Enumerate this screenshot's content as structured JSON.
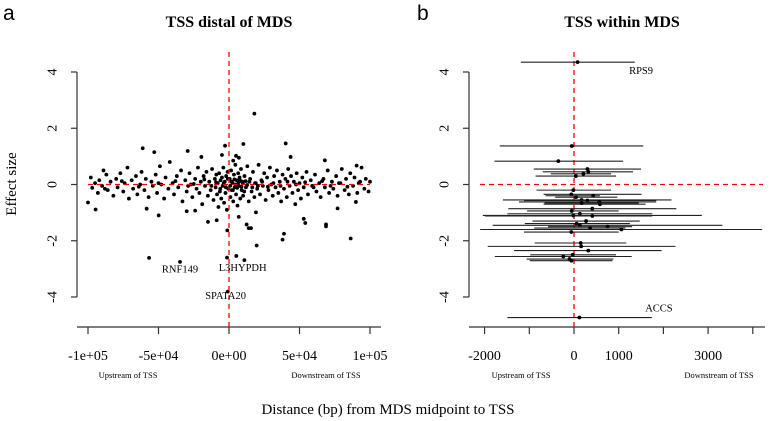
{
  "chart_data": [
    {
      "type": "scatter",
      "panel_letter": "a",
      "title": "TSS distal of MDS",
      "ylabel": "Effect size",
      "xlabel": "Distance (bp) from MDS midpoint to TSS",
      "xlim": [
        -100000,
        100000
      ],
      "ylim": [
        -4,
        4
      ],
      "xticks": [
        -100000,
        -50000,
        0,
        50000,
        100000
      ],
      "xtick_labels": [
        "-1e+05",
        "-5e+04",
        "0e+00",
        "5e+04",
        "1e+05"
      ],
      "yticks": [
        -4,
        -2,
        0,
        2,
        4
      ],
      "ytick_labels": [
        "-4",
        "-2",
        "0",
        "2",
        "4"
      ],
      "x_sublabels": {
        "left": "Upstream of TSS",
        "right": "Downstream of TSS"
      },
      "reference_lines": {
        "x": 0,
        "y": 0,
        "color": "#ff0000",
        "style": "dashed"
      },
      "point_color": "#000000",
      "annotations": [
        {
          "text": "RNF149",
          "x": -34750,
          "y": -3.04
        },
        {
          "text": "L3HYPDH",
          "x": 9700,
          "y": -2.99
        },
        {
          "text": "SPATA20",
          "x": -2400,
          "y": -3.99
        }
      ],
      "points": [
        [
          18000,
          2.52
        ],
        [
          40200,
          1.46
        ],
        [
          10200,
          1.44
        ],
        [
          -61200,
          1.29
        ],
        [
          -2800,
          1.38
        ],
        [
          -53000,
          1.15
        ],
        [
          -29300,
          1.19
        ],
        [
          -19600,
          0.98
        ],
        [
          43700,
          0.98
        ],
        [
          68000,
          0.86
        ],
        [
          90500,
          0.67
        ],
        [
          5000,
          1.02
        ],
        [
          7000,
          0.95
        ],
        [
          -5000,
          1.05
        ],
        [
          3000,
          0.85
        ],
        [
          -56700,
          -2.61
        ],
        [
          -34750,
          -2.75
        ],
        [
          -1400,
          -2.6
        ],
        [
          5200,
          -2.54
        ],
        [
          10900,
          -2.69
        ],
        [
          -900,
          -3.81
        ],
        [
          19600,
          -2.17
        ],
        [
          38000,
          -1.96
        ],
        [
          39000,
          -1.75
        ],
        [
          86300,
          -1.92
        ],
        [
          68800,
          -1.49
        ],
        [
          68800,
          -1.42
        ],
        [
          54100,
          -1.37
        ],
        [
          53000,
          -1.22
        ],
        [
          -49900,
          -1.1
        ],
        [
          -58400,
          -0.86
        ],
        [
          -94600,
          -0.89
        ],
        [
          -100000,
          -0.64
        ],
        [
          -1200,
          -1.63
        ],
        [
          -14900,
          -1.33
        ],
        [
          -8700,
          -1.27
        ],
        [
          12500,
          -1.42
        ],
        [
          15600,
          -1.55
        ],
        [
          19100,
          -0.99
        ],
        [
          6900,
          -1.15
        ],
        [
          14000,
          -1.55
        ],
        [
          -30000,
          -0.95
        ],
        [
          -24000,
          -0.93
        ],
        [
          77000,
          -0.85
        ],
        [
          90000,
          -0.62
        ],
        [
          -98000,
          0.25
        ],
        [
          -97000,
          -0.12
        ],
        [
          -95000,
          0.05
        ],
        [
          -93000,
          -0.3
        ],
        [
          -92000,
          0.15
        ],
        [
          -90000,
          -0.05
        ],
        [
          -89000,
          0.5
        ],
        [
          -87000,
          0.35
        ],
        [
          -86000,
          -0.2
        ],
        [
          -84000,
          0.1
        ],
        [
          -82000,
          -0.4
        ],
        [
          -80000,
          0.2
        ],
        [
          -79000,
          -0.1
        ],
        [
          -77000,
          0.4
        ],
        [
          -75000,
          -0.25
        ],
        [
          -74000,
          0.05
        ],
        [
          -72000,
          0.6
        ],
        [
          -71000,
          -0.5
        ],
        [
          -69000,
          0.15
        ],
        [
          -68000,
          -0.15
        ],
        [
          -66000,
          0.3
        ],
        [
          -65000,
          -0.35
        ],
        [
          -63000,
          0.0
        ],
        [
          -62000,
          0.45
        ],
        [
          -60000,
          -0.2
        ],
        [
          -59000,
          0.2
        ],
        [
          -57000,
          -0.45
        ],
        [
          -55000,
          0.1
        ],
        [
          -54000,
          -0.05
        ],
        [
          -52000,
          0.35
        ],
        [
          -51000,
          -0.3
        ],
        [
          -49000,
          0.65
        ],
        [
          -48000,
          0.0
        ],
        [
          -46000,
          -0.5
        ],
        [
          -45000,
          0.25
        ],
        [
          -43000,
          -0.15
        ],
        [
          -42000,
          0.8
        ],
        [
          -40000,
          0.05
        ],
        [
          -39000,
          -0.35
        ],
        [
          -37000,
          0.3
        ],
        [
          -36000,
          -0.1
        ],
        [
          -34000,
          0.5
        ],
        [
          -33000,
          -0.6
        ],
        [
          -31000,
          0.15
        ],
        [
          -30000,
          -0.25
        ],
        [
          -28000,
          0.4
        ],
        [
          -27000,
          0.0
        ],
        [
          -26000,
          -0.45
        ],
        [
          -24000,
          0.2
        ],
        [
          -23000,
          -0.15
        ],
        [
          -22000,
          0.6
        ],
        [
          -21000,
          -0.3
        ],
        [
          -20000,
          0.1
        ],
        [
          -19000,
          -0.7
        ],
        [
          -18000,
          0.3
        ],
        [
          -17000,
          -0.05
        ],
        [
          -16000,
          0.45
        ],
        [
          -15000,
          -0.4
        ],
        [
          -14000,
          0.1
        ],
        [
          -13000,
          -0.2
        ],
        [
          -12000,
          0.55
        ],
        [
          -11000,
          -0.55
        ],
        [
          -10000,
          0.2
        ],
        [
          -9500,
          -0.1
        ],
        [
          -9000,
          0.35
        ],
        [
          -8500,
          -0.35
        ],
        [
          -8000,
          0.05
        ],
        [
          -7500,
          -0.8
        ],
        [
          -7000,
          0.4
        ],
        [
          -6500,
          -0.25
        ],
        [
          -6000,
          0.15
        ],
        [
          -5500,
          -0.5
        ],
        [
          -5000,
          0.25
        ],
        [
          -4500,
          -0.05
        ],
        [
          -4000,
          0.6
        ],
        [
          -3500,
          -0.65
        ],
        [
          -3000,
          0.1
        ],
        [
          -2500,
          -0.3
        ],
        [
          -2000,
          0.3
        ],
        [
          -1500,
          -0.9
        ],
        [
          -1000,
          0.45
        ],
        [
          -500,
          -0.15
        ],
        [
          500,
          0.2
        ],
        [
          1000,
          -0.45
        ],
        [
          1500,
          0.5
        ],
        [
          2000,
          -0.2
        ],
        [
          2500,
          0.05
        ],
        [
          3000,
          -0.6
        ],
        [
          3500,
          0.35
        ],
        [
          4000,
          -0.1
        ],
        [
          4500,
          0.7
        ],
        [
          5000,
          -0.35
        ],
        [
          5500,
          0.15
        ],
        [
          6000,
          -0.75
        ],
        [
          6500,
          0.4
        ],
        [
          7000,
          -0.05
        ],
        [
          7500,
          0.25
        ],
        [
          8000,
          -0.5
        ],
        [
          8500,
          0.55
        ],
        [
          9000,
          -0.2
        ],
        [
          9500,
          0.1
        ],
        [
          10000,
          -0.4
        ],
        [
          11000,
          0.3
        ],
        [
          12000,
          -0.1
        ],
        [
          13000,
          0.65
        ],
        [
          14000,
          -0.6
        ],
        [
          15000,
          0.2
        ],
        [
          16000,
          -0.25
        ],
        [
          17000,
          0.45
        ],
        [
          18000,
          -0.45
        ],
        [
          19000,
          0.05
        ],
        [
          20000,
          -0.15
        ],
        [
          21000,
          0.7
        ],
        [
          22000,
          -0.35
        ],
        [
          23000,
          0.15
        ],
        [
          24000,
          -0.05
        ],
        [
          25000,
          0.4
        ],
        [
          26000,
          -0.55
        ],
        [
          27000,
          0.25
        ],
        [
          28000,
          -0.2
        ],
        [
          29000,
          0.6
        ],
        [
          30000,
          0.0
        ],
        [
          31000,
          -0.4
        ],
        [
          32000,
          0.3
        ],
        [
          33000,
          -0.1
        ],
        [
          34000,
          0.5
        ],
        [
          35000,
          -0.3
        ],
        [
          36000,
          0.1
        ],
        [
          37000,
          -0.6
        ],
        [
          38000,
          0.35
        ],
        [
          39000,
          -0.15
        ],
        [
          40000,
          0.2
        ],
        [
          41000,
          -0.45
        ],
        [
          42000,
          0.55
        ],
        [
          43000,
          -0.05
        ],
        [
          44000,
          0.3
        ],
        [
          45000,
          -0.3
        ],
        [
          46000,
          0.1
        ],
        [
          47000,
          -0.7
        ],
        [
          48000,
          0.4
        ],
        [
          49000,
          -0.2
        ],
        [
          50000,
          0.05
        ],
        [
          51000,
          -0.5
        ],
        [
          52000,
          0.25
        ],
        [
          53000,
          -0.1
        ],
        [
          55000,
          0.45
        ],
        [
          56000,
          -0.35
        ],
        [
          58000,
          0.15
        ],
        [
          59000,
          -0.05
        ],
        [
          61000,
          0.35
        ],
        [
          62000,
          -0.25
        ],
        [
          64000,
          0.05
        ],
        [
          65000,
          -0.45
        ],
        [
          67000,
          0.2
        ],
        [
          68000,
          -0.1
        ],
        [
          70000,
          0.5
        ],
        [
          71000,
          -0.3
        ],
        [
          73000,
          0.1
        ],
        [
          74000,
          -0.15
        ],
        [
          76000,
          0.3
        ],
        [
          77000,
          -0.4
        ],
        [
          79000,
          0.05
        ],
        [
          80000,
          0.55
        ],
        [
          82000,
          -0.2
        ],
        [
          83000,
          0.2
        ],
        [
          85000,
          -0.35
        ],
        [
          86000,
          0.4
        ],
        [
          88000,
          -0.05
        ],
        [
          89000,
          0.25
        ],
        [
          91000,
          -0.3
        ],
        [
          93000,
          0.1
        ],
        [
          94000,
          0.6
        ],
        [
          96000,
          -0.15
        ],
        [
          97000,
          0.2
        ],
        [
          99000,
          -0.25
        ],
        [
          100000,
          0.1
        ],
        [
          -88000,
          -0.15
        ],
        [
          -76000,
          0.12
        ],
        [
          -64000,
          -0.08
        ],
        [
          -50000,
          0.05
        ],
        [
          -38000,
          0.12
        ],
        [
          -29000,
          -0.05
        ],
        [
          -25000,
          0.02
        ],
        [
          -17500,
          0.18
        ],
        [
          -12500,
          -0.05
        ],
        [
          -9200,
          0.08
        ],
        [
          -6200,
          -0.15
        ],
        [
          -3800,
          0.05
        ],
        [
          -2200,
          -0.1
        ],
        [
          -800,
          0.2
        ],
        [
          800,
          -0.05
        ],
        [
          1800,
          0.1
        ],
        [
          2800,
          -0.2
        ],
        [
          3800,
          0.18
        ],
        [
          4800,
          0.0
        ],
        [
          5800,
          -0.12
        ],
        [
          6800,
          0.08
        ],
        [
          7800,
          0.15
        ],
        [
          8800,
          -0.08
        ],
        [
          9800,
          0.05
        ],
        [
          10800,
          -0.25
        ],
        [
          11800,
          0.12
        ],
        [
          12800,
          -0.02
        ],
        [
          14500,
          0.1
        ],
        [
          16500,
          -0.1
        ],
        [
          18500,
          0.05
        ],
        [
          20500,
          -0.05
        ],
        [
          23500,
          0.1
        ],
        [
          27500,
          -0.08
        ],
        [
          31500,
          0.05
        ],
        [
          36500,
          -0.05
        ],
        [
          41500,
          0.1
        ],
        [
          47500,
          0.0
        ],
        [
          54000,
          0.08
        ],
        [
          60000,
          -0.1
        ],
        [
          66000,
          0.12
        ],
        [
          72000,
          -0.05
        ],
        [
          78000,
          0.05
        ],
        [
          84000,
          -0.08
        ],
        [
          92000,
          0.05
        ]
      ]
    },
    {
      "type": "scatter",
      "subtype": "interval",
      "panel_letter": "b",
      "title": "TSS within MDS",
      "xlim": [
        -2000,
        4200
      ],
      "ylim": [
        -4,
        4
      ],
      "xticks": [
        -2000,
        -1000,
        0,
        1000,
        2000,
        3000,
        4000
      ],
      "xtick_labels": [
        "-2000",
        "",
        "0",
        "1000",
        "",
        "3000",
        ""
      ],
      "yticks": [
        -4,
        -2,
        0,
        2,
        4
      ],
      "ytick_labels": [
        "-4",
        "-2",
        "0",
        "2",
        "4"
      ],
      "x_sublabels": {
        "left": "Upstream of TSS",
        "right": "Downstream of TSS"
      },
      "reference_lines": {
        "x": 0,
        "y": 0,
        "color": "#ff0000",
        "style": "dashed"
      },
      "annotations": [
        {
          "text": "RPS9",
          "x": 1500,
          "y": 4.02
        },
        {
          "text": "ACCS",
          "x": 1900,
          "y": -4.43
        }
      ],
      "intervals_columns": [
        "center",
        "y",
        "low",
        "high"
      ],
      "intervals": [
        [
          80,
          4.35,
          -1190,
          1360
        ],
        [
          120,
          -4.73,
          -1490,
          1740
        ],
        [
          -50,
          1.37,
          -1660,
          1550
        ],
        [
          -350,
          0.83,
          -1780,
          1100
        ],
        [
          300,
          0.55,
          -900,
          1500
        ],
        [
          320,
          0.45,
          -700,
          1320
        ],
        [
          210,
          0.38,
          -520,
          830
        ],
        [
          40,
          0.3,
          -860,
          940
        ],
        [
          -15,
          -0.2,
          -840,
          830
        ],
        [
          -60,
          -0.35,
          -680,
          1510
        ],
        [
          430,
          -0.4,
          -640,
          580
        ],
        [
          45,
          -0.45,
          -420,
          970
        ],
        [
          170,
          -0.55,
          -1590,
          2180
        ],
        [
          300,
          -0.57,
          -1120,
          1840
        ],
        [
          565,
          -0.62,
          -1230,
          1840
        ],
        [
          580,
          -0.7,
          -680,
          1600
        ],
        [
          170,
          -0.66,
          -660,
          1450
        ],
        [
          410,
          -0.86,
          -1470,
          2290
        ],
        [
          -50,
          -0.94,
          -1050,
          1000
        ],
        [
          130,
          -1.04,
          -1490,
          1750
        ],
        [
          -15,
          -1.1,
          -2040,
          2860
        ],
        [
          410,
          -1.12,
          -1990,
          1750
        ],
        [
          270,
          -1.3,
          -930,
          1470
        ],
        [
          60,
          -1.39,
          -1100,
          1250
        ],
        [
          130,
          -1.45,
          -1820,
          3320
        ],
        [
          750,
          -1.5,
          -580,
          1300
        ],
        [
          360,
          -1.55,
          -890,
          1150
        ],
        [
          1060,
          -1.6,
          -2100,
          4210
        ],
        [
          -60,
          -1.69,
          -1120,
          1000
        ],
        [
          150,
          -2.08,
          -880,
          1170
        ],
        [
          160,
          -2.2,
          -1930,
          2270
        ],
        [
          320,
          -2.35,
          -1340,
          1960
        ],
        [
          -30,
          -2.5,
          -980,
          940
        ],
        [
          -240,
          -2.56,
          -1770,
          1290
        ],
        [
          -100,
          -2.65,
          -1060,
          880
        ],
        [
          -60,
          -2.71,
          -990,
          860
        ]
      ]
    }
  ]
}
